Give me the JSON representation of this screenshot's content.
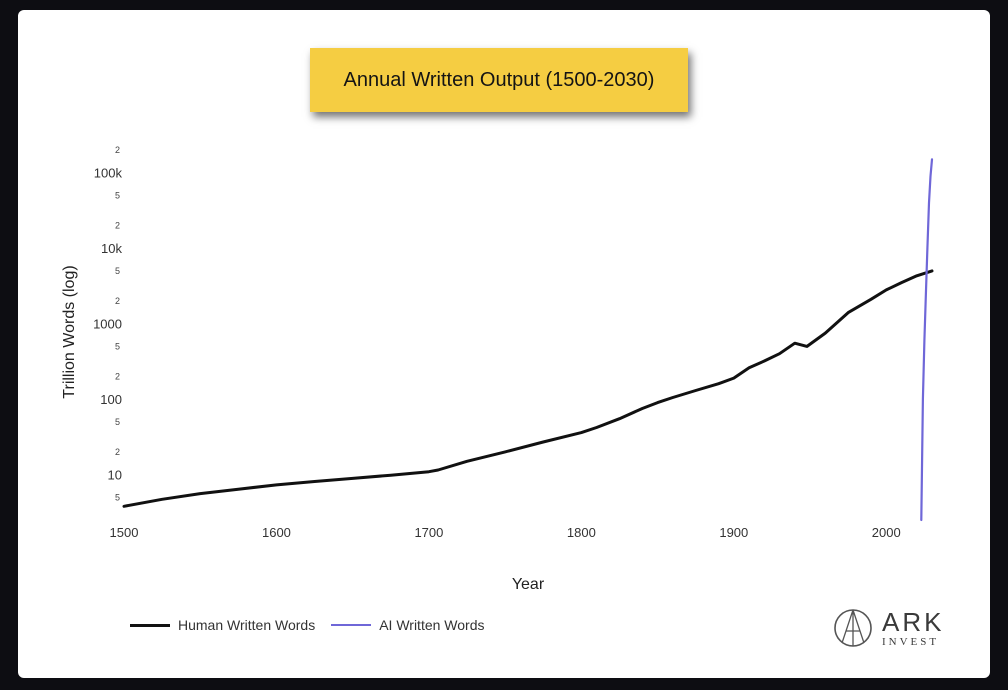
{
  "slide": {
    "title": "Annual Written Output (1500-2030)"
  },
  "chart_data": {
    "type": "line",
    "title": "Annual Written Output (1500-2030)",
    "xlabel": "Year",
    "ylabel": "Trillion Words (log)",
    "xlim": [
      1500,
      2030
    ],
    "ylim": [
      2.5,
      200000
    ],
    "y_scale": "log",
    "grid": false,
    "legend_position": "bottom-left",
    "x_ticks": [
      "1500",
      "1600",
      "1700",
      "1800",
      "1900",
      "2000"
    ],
    "y_major_ticks": [
      {
        "value": 10,
        "label": "10"
      },
      {
        "value": 100,
        "label": "100"
      },
      {
        "value": 1000,
        "label": "1000"
      },
      {
        "value": 10000,
        "label": "10k"
      },
      {
        "value": 100000,
        "label": "100k"
      }
    ],
    "y_minor_ticks": [
      {
        "value": 5,
        "label": "5"
      },
      {
        "value": 20,
        "label": "2"
      },
      {
        "value": 50,
        "label": "5"
      },
      {
        "value": 200,
        "label": "2"
      },
      {
        "value": 500,
        "label": "5"
      },
      {
        "value": 2000,
        "label": "2"
      },
      {
        "value": 5000,
        "label": "5"
      },
      {
        "value": 20000,
        "label": "2"
      },
      {
        "value": 50000,
        "label": "5"
      },
      {
        "value": 200000,
        "label": "2"
      }
    ],
    "series": [
      {
        "name": "Human Written Words",
        "color": "#111111",
        "x": [
          1500,
          1525,
          1550,
          1575,
          1600,
          1625,
          1650,
          1675,
          1700,
          1706,
          1725,
          1750,
          1775,
          1800,
          1810,
          1825,
          1840,
          1850,
          1860,
          1875,
          1890,
          1900,
          1910,
          1920,
          1930,
          1940,
          1948,
          1960,
          1975,
          1990,
          2000,
          2010,
          2020,
          2030
        ],
        "values": [
          3.8,
          4.7,
          5.6,
          6.4,
          7.3,
          8.1,
          8.9,
          9.8,
          10.9,
          11.5,
          15,
          20,
          27,
          36,
          42,
          55,
          75,
          90,
          105,
          130,
          160,
          190,
          260,
          320,
          400,
          550,
          500,
          750,
          1400,
          2100,
          2800,
          3500,
          4300,
          5000
        ]
      },
      {
        "name": "AI Written Words",
        "color": "#6f67d8",
        "x": [
          2023,
          2024,
          2025,
          2026,
          2027,
          2028,
          2029,
          2030
        ],
        "values": [
          2.5,
          100,
          600,
          2500,
          10000,
          40000,
          90000,
          150000
        ]
      }
    ]
  },
  "legend": {
    "items": [
      {
        "label": "Human Written Words",
        "color": "#111111"
      },
      {
        "label": "AI Written Words",
        "color": "#6f67d8"
      }
    ]
  },
  "logo": {
    "name": "ARK",
    "sub": "INVEST"
  }
}
